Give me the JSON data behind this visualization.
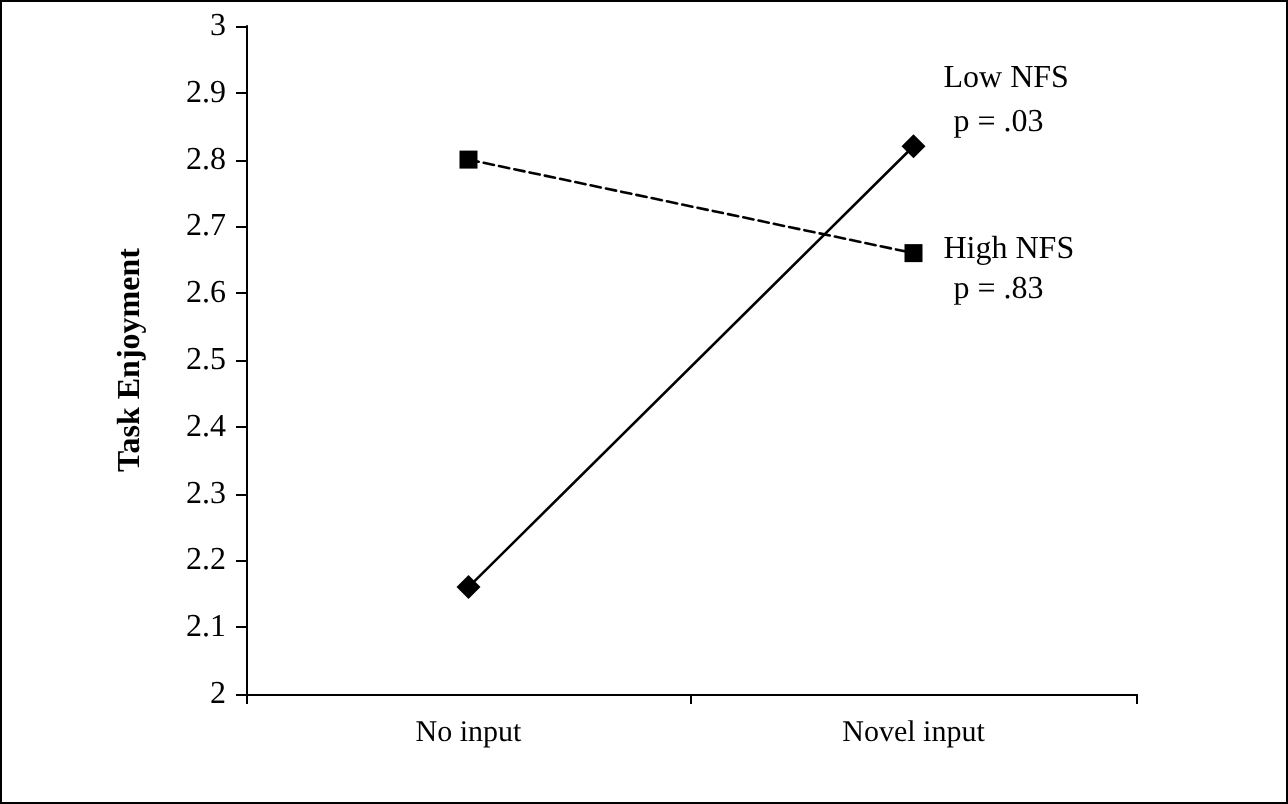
{
  "chart_data": {
    "type": "line",
    "ylabel": "Task Enjoyment",
    "categories": [
      "No input",
      "Novel input"
    ],
    "series": [
      {
        "name": "Low NFS",
        "color": "#000000",
        "values": [
          2.16,
          2.82
        ],
        "marker": "diamond",
        "line_style": "solid"
      },
      {
        "name": "High NFS",
        "color": "#000000",
        "values": [
          2.8,
          2.66
        ],
        "marker": "square",
        "line_style": "dashed"
      }
    ],
    "ylim": [
      2,
      3
    ],
    "yticks": [
      2,
      2.1,
      2.2,
      2.3,
      2.4,
      2.5,
      2.6,
      2.7,
      2.8,
      2.9,
      3
    ],
    "grid": false,
    "legend": false,
    "annotations": [
      {
        "text": "p = .03",
        "x": "Novel input",
        "y": 2.82
      },
      {
        "text": "p = .83",
        "x": "Novel input",
        "y": 2.66
      }
    ]
  }
}
